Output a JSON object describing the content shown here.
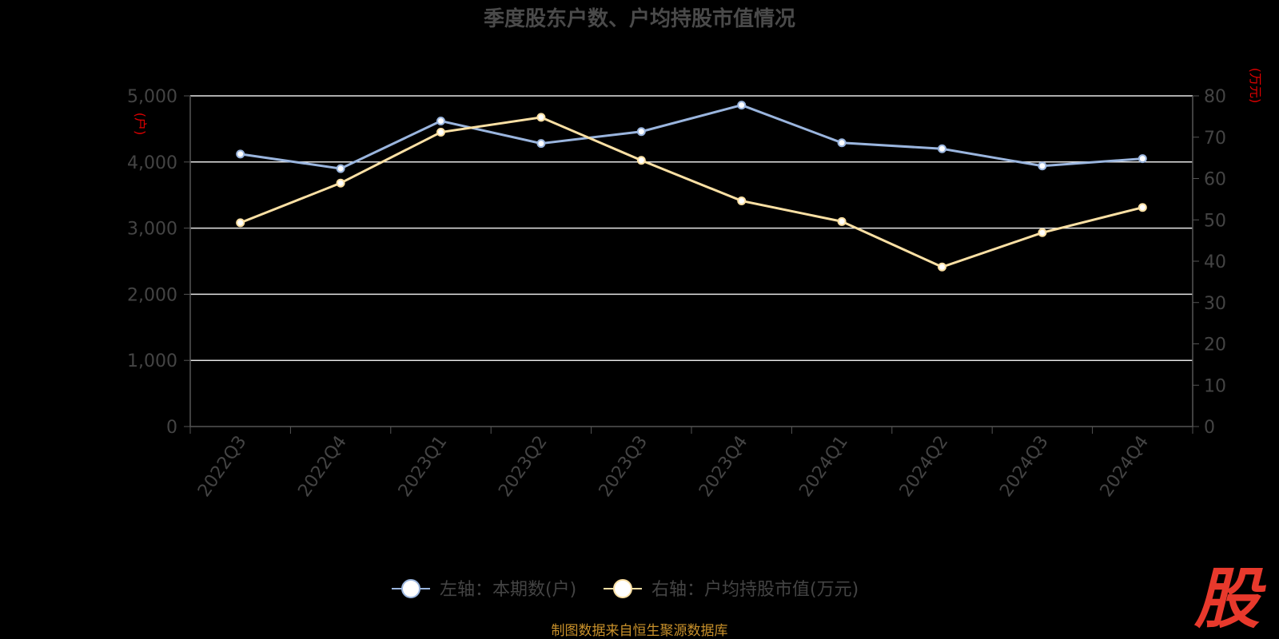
{
  "chart_data": {
    "type": "line",
    "title": "季度股东户数、户均持股市值情况",
    "categories": [
      "2022Q3",
      "2022Q4",
      "2023Q1",
      "2023Q2",
      "2023Q3",
      "2023Q4",
      "2024Q1",
      "2024Q2",
      "2024Q3",
      "2024Q4"
    ],
    "left_axis": {
      "unit": "(户)",
      "ylim": [
        0,
        5000
      ],
      "ticks": [
        "0",
        "1,000",
        "2,000",
        "3,000",
        "4,000",
        "5,000"
      ]
    },
    "right_axis": {
      "unit": "(万元)",
      "ylim": [
        0,
        80
      ],
      "ticks": [
        "0",
        "10",
        "20",
        "30",
        "40",
        "50",
        "60",
        "70",
        "80"
      ]
    },
    "series": [
      {
        "name": "左轴：本期数(户)",
        "axis": "left",
        "color": "#9ab5de",
        "values": [
          4120,
          3900,
          4620,
          4280,
          4460,
          4860,
          4290,
          4200,
          3940,
          4050
        ]
      },
      {
        "name": "右轴：户均持股市值(万元)",
        "axis": "right",
        "color": "#fbe0a4",
        "values": [
          49.3,
          58.9,
          71.2,
          74.8,
          64.4,
          54.6,
          49.6,
          38.6,
          46.9,
          53.0
        ]
      }
    ],
    "grid": true,
    "legend_position": "bottom"
  },
  "source": "制图数据来自恒生聚源数据库",
  "logo_text": "股"
}
